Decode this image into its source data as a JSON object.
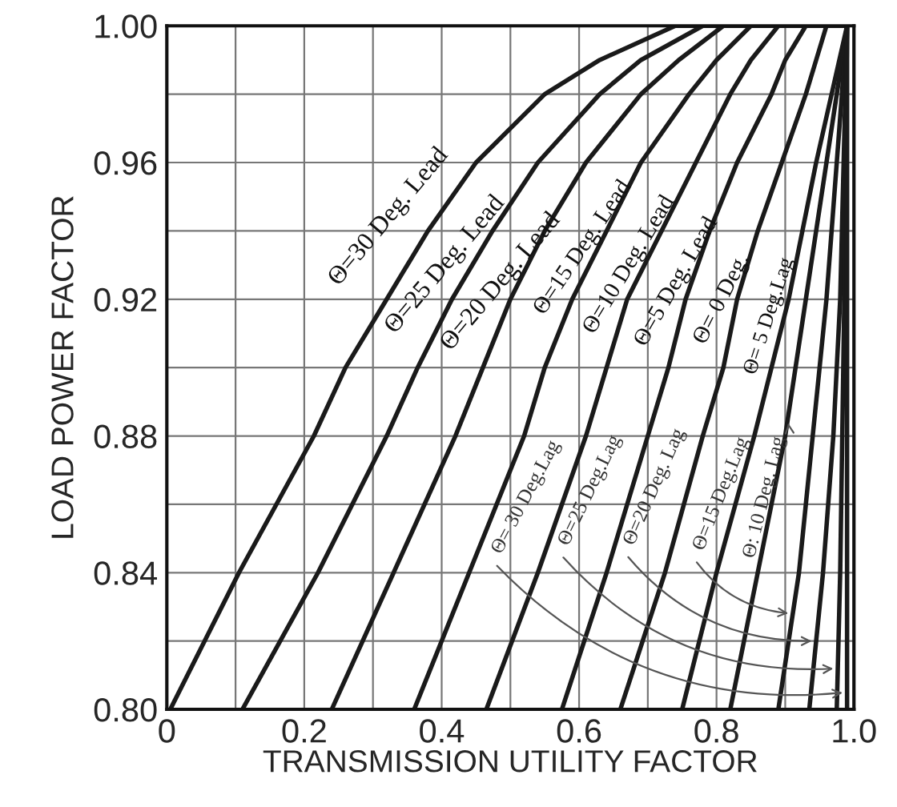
{
  "chart_data": {
    "type": "line",
    "xlabel": "TRANSMISSION UTILITY FACTOR",
    "ylabel": "LOAD POWER FACTOR",
    "xlim": [
      0,
      1.0
    ],
    "ylim": [
      0.8,
      1.0
    ],
    "xticks": [
      {
        "value": 0,
        "label": "0"
      },
      {
        "value": 0.1,
        "label": null
      },
      {
        "value": 0.2,
        "label": "0.2"
      },
      {
        "value": 0.3,
        "label": null
      },
      {
        "value": 0.4,
        "label": "0.4"
      },
      {
        "value": 0.5,
        "label": null
      },
      {
        "value": 0.6,
        "label": "0.6"
      },
      {
        "value": 0.7,
        "label": null
      },
      {
        "value": 0.8,
        "label": "0.8"
      },
      {
        "value": 0.9,
        "label": null
      },
      {
        "value": 1.0,
        "label": "1.0"
      }
    ],
    "yticks": [
      {
        "value": 0.8,
        "label": "0.80"
      },
      {
        "value": 0.82,
        "label": null
      },
      {
        "value": 0.84,
        "label": "0.84"
      },
      {
        "value": 0.86,
        "label": null
      },
      {
        "value": 0.88,
        "label": "0.88"
      },
      {
        "value": 0.9,
        "label": null
      },
      {
        "value": 0.92,
        "label": "0.92"
      },
      {
        "value": 0.94,
        "label": null
      },
      {
        "value": 0.96,
        "label": "0.96"
      },
      {
        "value": 0.98,
        "label": null
      },
      {
        "value": 1.0,
        "label": "1.00"
      }
    ],
    "grid": true,
    "legend": false,
    "marker": "none",
    "line_style": "solid",
    "series": [
      {
        "name": "Θ=30 Deg. Lead",
        "color": "#1a1a1a",
        "x": [
          0.005,
          0.105,
          0.214,
          0.26,
          0.32,
          0.38,
          0.45,
          0.55,
          0.63,
          0.74,
          0.99
        ],
        "values": [
          0.8,
          0.84,
          0.88,
          0.9,
          0.92,
          0.94,
          0.96,
          0.98,
          0.99,
          1.0,
          1.0
        ]
      },
      {
        "name": "Θ=25 Deg. Lead",
        "color": "#1a1a1a",
        "x": [
          0.11,
          0.22,
          0.32,
          0.365,
          0.415,
          0.474,
          0.54,
          0.63,
          0.69,
          0.78,
          0.99
        ],
        "values": [
          0.8,
          0.84,
          0.88,
          0.9,
          0.92,
          0.94,
          0.96,
          0.98,
          0.99,
          1.0,
          1.0
        ]
      },
      {
        "name": "Θ=20 Deg. Lead",
        "color": "#1a1a1a",
        "x": [
          0.24,
          0.33,
          0.42,
          0.46,
          0.5,
          0.55,
          0.61,
          0.69,
          0.745,
          0.81,
          0.99
        ],
        "values": [
          0.8,
          0.84,
          0.88,
          0.9,
          0.92,
          0.94,
          0.96,
          0.98,
          0.99,
          1.0,
          1.0
        ]
      },
      {
        "name": "Θ=15 Deg. Lead",
        "color": "#1a1a1a",
        "x": [
          0.36,
          0.44,
          0.52,
          0.55,
          0.59,
          0.64,
          0.69,
          0.76,
          0.8,
          0.85,
          0.99
        ],
        "values": [
          0.8,
          0.84,
          0.88,
          0.9,
          0.92,
          0.94,
          0.96,
          0.98,
          0.99,
          1.0,
          1.0
        ]
      },
      {
        "name": "Θ=10 Deg. Lead",
        "color": "#1a1a1a",
        "x": [
          0.465,
          0.54,
          0.61,
          0.64,
          0.67,
          0.72,
          0.77,
          0.82,
          0.85,
          0.89,
          0.99
        ],
        "values": [
          0.8,
          0.84,
          0.88,
          0.9,
          0.92,
          0.94,
          0.96,
          0.98,
          0.99,
          1.0,
          1.0
        ]
      },
      {
        "name": "Θ=5 Deg. Lead",
        "color": "#1a1a1a",
        "x": [
          0.575,
          0.64,
          0.7,
          0.73,
          0.755,
          0.79,
          0.83,
          0.88,
          0.9,
          0.93,
          0.99
        ],
        "values": [
          0.8,
          0.84,
          0.88,
          0.9,
          0.92,
          0.94,
          0.96,
          0.98,
          0.99,
          1.0,
          1.0
        ]
      },
      {
        "name": "Θ= 0 Deg.",
        "color": "#1a1a1a",
        "x": [
          0.66,
          0.725,
          0.78,
          0.81,
          0.83,
          0.86,
          0.895,
          0.93,
          0.945,
          0.96,
          0.99
        ],
        "values": [
          0.8,
          0.84,
          0.88,
          0.9,
          0.92,
          0.94,
          0.96,
          0.98,
          0.99,
          1.0,
          1.0
        ]
      },
      {
        "name": "Θ= 5 Deg.Lag",
        "color": "#1a1a1a",
        "x": [
          0.75,
          0.8,
          0.855,
          0.905,
          0.945,
          0.99
        ],
        "values": [
          0.8,
          0.84,
          0.88,
          0.92,
          0.96,
          1.0
        ]
      },
      {
        "name": "Θ: 10 Deg. Lag",
        "color": "#1a1a1a",
        "x": [
          0.82,
          0.86,
          0.9,
          0.93,
          0.96,
          0.99
        ],
        "values": [
          0.8,
          0.84,
          0.88,
          0.92,
          0.96,
          1.0
        ]
      },
      {
        "name": "Θ=15 Deg.Lag",
        "color": "#1a1a1a",
        "x": [
          0.89,
          0.92,
          0.94,
          0.96,
          0.975,
          0.99
        ],
        "values": [
          0.8,
          0.84,
          0.88,
          0.92,
          0.96,
          1.0
        ]
      },
      {
        "name": "Θ=20 Deg. Lag",
        "color": "#1a1a1a",
        "x": [
          0.935,
          0.955,
          0.97,
          0.98,
          0.985,
          0.99
        ],
        "values": [
          0.8,
          0.84,
          0.88,
          0.92,
          0.96,
          1.0
        ]
      },
      {
        "name": "Θ=25 Deg.Lag",
        "color": "#1a1a1a",
        "x": [
          0.975,
          0.98,
          0.983,
          0.986,
          0.988,
          0.99
        ],
        "values": [
          0.8,
          0.84,
          0.88,
          0.92,
          0.96,
          1.0
        ]
      },
      {
        "name": "Θ= 30 Deg.Lag",
        "color": "#1a1a1a",
        "x": [
          0.99,
          0.99,
          0.99,
          0.99,
          0.99,
          0.99
        ],
        "values": [
          0.8,
          0.84,
          0.88,
          0.92,
          0.96,
          1.0
        ]
      }
    ]
  }
}
